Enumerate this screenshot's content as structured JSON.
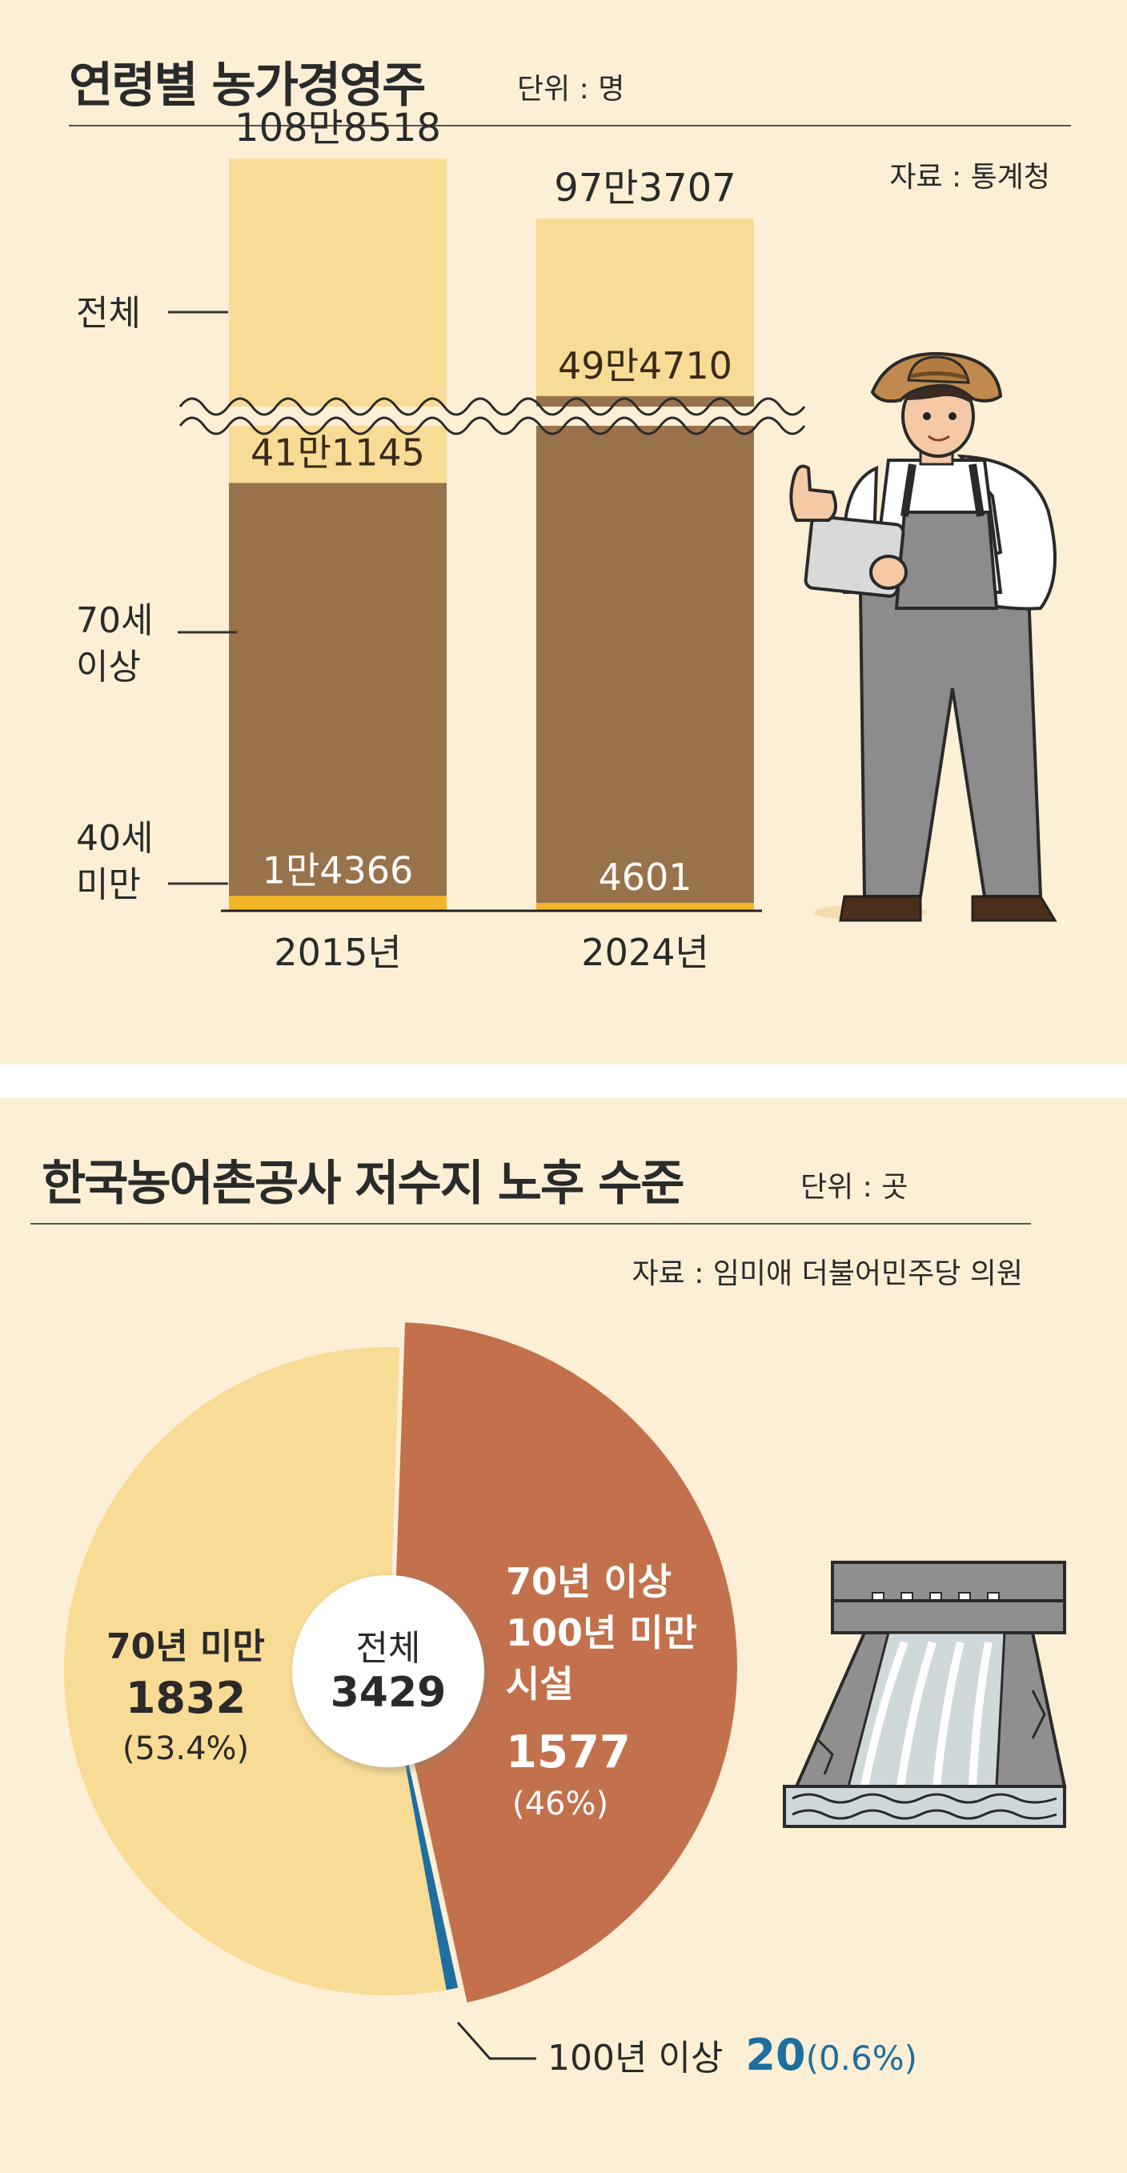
{
  "chart_data": [
    {
      "type": "bar",
      "title": "연령별 농가경영주",
      "unit_label": "단위 : 명",
      "source": "자료 : 통계청",
      "categories": [
        "2015년",
        "2024년"
      ],
      "series": [
        {
          "name": "40세 미만",
          "values": [
            14366,
            4601
          ],
          "labels": [
            "1만4366",
            "4601"
          ],
          "color": "#f2b629"
        },
        {
          "name": "70세 이상",
          "values": [
            411145,
            494710
          ],
          "labels": [
            "41만1145",
            "49만4710"
          ],
          "color": "#98724a"
        },
        {
          "name": "전체",
          "values": [
            1088518,
            973707
          ],
          "labels": [
            "108만8518",
            "97만3707"
          ],
          "color": "#f8dc95"
        }
      ],
      "axis_break": true
    },
    {
      "type": "pie",
      "title": "한국농어촌공사 저수지 노후 수준",
      "unit_label": "단위 : 곳",
      "source": "자료 : 임미애 더불어민주당 의원",
      "center_label": "전체",
      "center_value": "3429",
      "slices": [
        {
          "label": "70년 이상 100년 미만 시설",
          "label_lines": [
            "70년 이상",
            "100년 미만",
            "시설"
          ],
          "value": 1577,
          "value_text": "1577",
          "percent": "(46%)",
          "color": "#c2714c"
        },
        {
          "label": "100년 이상",
          "value": 20,
          "value_text": "20",
          "percent": "(0.6%)",
          "color": "#1e6e9e"
        },
        {
          "label": "70년 미만",
          "label_lines": [
            "70년 미만"
          ],
          "value": 1832,
          "value_text": "1832",
          "percent": "(53.4%)",
          "color": "#f8dc95"
        }
      ]
    }
  ]
}
